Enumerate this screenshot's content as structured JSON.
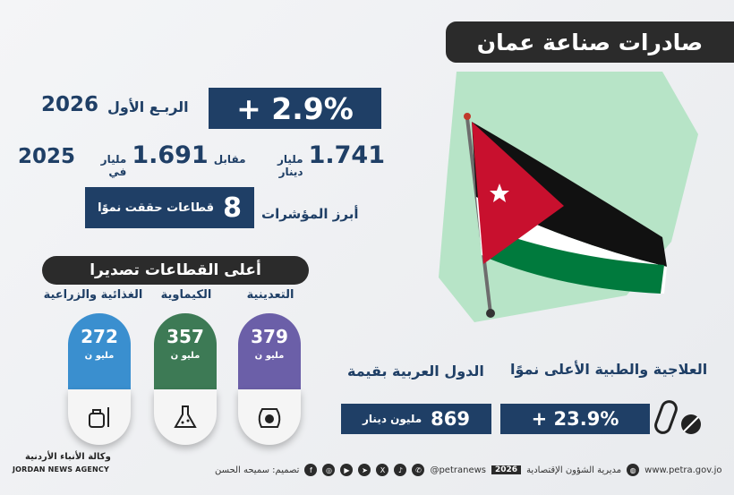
{
  "title": "صادرات صناعة عمان",
  "growth": {
    "value": "+ 2.9%",
    "quarter_label": "الربـع الأول",
    "year": "2026"
  },
  "values": {
    "current": "1.741",
    "current_unit": "مليار دينار",
    "versus": "مقابل",
    "previous": "1.691",
    "previous_unit": "مليار في",
    "previous_year": "2025"
  },
  "indicators": {
    "label": "أبرز المؤشرات",
    "count": "8",
    "text": "قطاعات حققت نموًا"
  },
  "sectors": {
    "header": "أعلى القطاعات تصديرا",
    "unit": "مليو ن",
    "items": [
      {
        "name": "التعدينية",
        "value": "379",
        "color": "#6b5fa8",
        "icon": "mining-sack-icon"
      },
      {
        "name": "الكيماوية",
        "value": "357",
        "color": "#3d7a55",
        "icon": "chemical-flask-icon"
      },
      {
        "name": "الغذائية والزراعية",
        "value": "272",
        "color": "#3a8fcf",
        "icon": "food-kettle-icon"
      }
    ]
  },
  "pharma": {
    "label": "العلاجية والطبية الأعلى نموًا",
    "value": "+ 23.9%"
  },
  "arab": {
    "label": "الدول العربية بقيمة",
    "value": "869",
    "unit": "مليون دينار"
  },
  "footer": {
    "agency_ar": "وكالة الأنباء الأردنية",
    "agency_en": "JORDAN NEWS AGENCY",
    "designer": "تصميم: سميحه الحسن",
    "handle": "@petranews",
    "year": "2026",
    "department": "مديرية الشؤون الإقتصادية",
    "website": "www.petra.gov.jo"
  },
  "colors": {
    "navy": "#1f3f66",
    "dark": "#2b2b2b",
    "map_green": "#b7e4c7",
    "flag_red": "#c8102e",
    "flag_green": "#007a3d"
  }
}
